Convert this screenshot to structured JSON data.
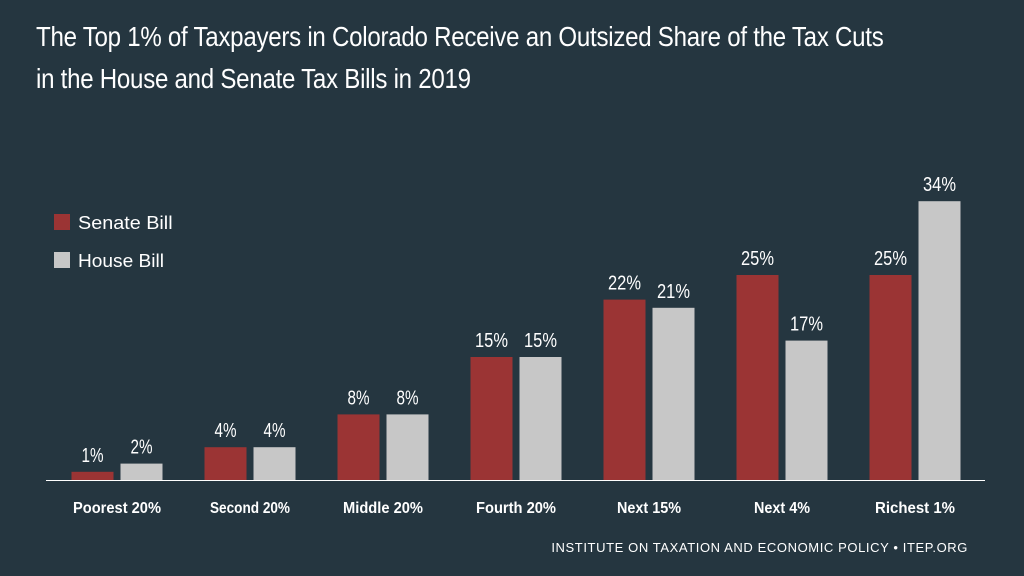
{
  "colors": {
    "background": "#253640",
    "senate": "#9b3434",
    "house": "#c7c7c7",
    "text": "#ffffff",
    "axis": "#ffffff"
  },
  "footer": "INSTITUTE ON TAXATION AND ECONOMIC POLICY • ITEP.ORG",
  "chart_data": {
    "type": "bar",
    "title_lines": [
      "The Top 1% of Taxpayers in Colorado Receive an Outsized Share of the Tax Cuts",
      "in the House and Senate Tax Bills in 2019"
    ],
    "xlabel": "",
    "ylabel": "",
    "ylim": [
      0,
      40
    ],
    "grid": false,
    "legend_position": "left",
    "categories": [
      "Poorest 20%",
      "Second 20%",
      "Middle 20%",
      "Fourth 20%",
      "Next 15%",
      "Next 4%",
      "Richest 1%"
    ],
    "series": [
      {
        "name": "Senate Bill",
        "color_key": "senate",
        "values": [
          1,
          4,
          8,
          15,
          22,
          25,
          25
        ],
        "labels": [
          "1%",
          "4%",
          "8%",
          "15%",
          "22%",
          "25%",
          "25%"
        ]
      },
      {
        "name": "House Bill",
        "color_key": "house",
        "values": [
          2,
          4,
          8,
          15,
          21,
          17,
          34
        ],
        "labels": [
          "2%",
          "4%",
          "8%",
          "15%",
          "21%",
          "17%",
          "34%"
        ]
      }
    ]
  }
}
